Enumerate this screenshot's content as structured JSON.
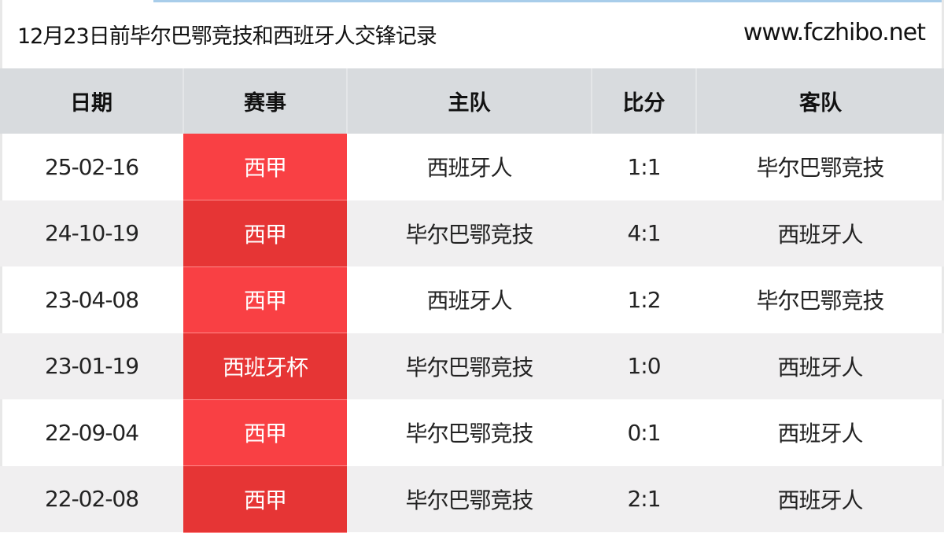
{
  "header": {
    "title": "12月23日前毕尔巴鄂竞技和西班牙人交锋记录",
    "site": "www.fczhibo.net"
  },
  "table": {
    "columns": [
      "日期",
      "赛事",
      "主队",
      "比分",
      "客队"
    ],
    "rows": [
      {
        "date": "25-02-16",
        "competition": "西甲",
        "home": "西班牙人",
        "score": "1:1",
        "away": "毕尔巴鄂竞技"
      },
      {
        "date": "24-10-19",
        "competition": "西甲",
        "home": "毕尔巴鄂竞技",
        "score": "4:1",
        "away": "西班牙人"
      },
      {
        "date": "23-04-08",
        "competition": "西甲",
        "home": "西班牙人",
        "score": "1:2",
        "away": "毕尔巴鄂竞技"
      },
      {
        "date": "23-01-19",
        "competition": "西班牙杯",
        "home": "毕尔巴鄂竞技",
        "score": "1:0",
        "away": "西班牙人"
      },
      {
        "date": "22-09-04",
        "competition": "西甲",
        "home": "毕尔巴鄂竞技",
        "score": "0:1",
        "away": "西班牙人"
      },
      {
        "date": "22-02-08",
        "competition": "西甲",
        "home": "毕尔巴鄂竞技",
        "score": "2:1",
        "away": "西班牙人"
      }
    ]
  },
  "colors": {
    "competition_bg": "#f94044",
    "competition_bg_alt": "#e63535",
    "header_bg": "#d8dbde",
    "row_alt_bg": "#f0eff0"
  }
}
